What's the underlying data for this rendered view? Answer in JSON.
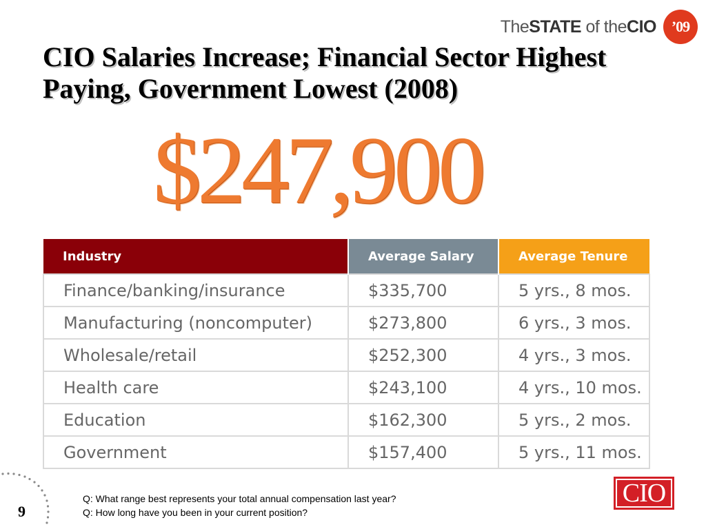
{
  "brand": {
    "prefix": "The",
    "bold": "STATE",
    "middle": "of the",
    "bold2": "CIO",
    "year": "’09"
  },
  "title": "CIO Salaries Increase; Financial Sector Highest Paying, Government Lowest (2008)",
  "headline_value": "$247,900",
  "table": {
    "headers": [
      "Industry",
      "Average Salary",
      "Average Tenure"
    ],
    "rows": [
      [
        "Finance/banking/insurance",
        "$335,700",
        "5 yrs., 8 mos."
      ],
      [
        "Manufacturing (noncomputer)",
        "$273,800",
        "6 yrs., 3 mos."
      ],
      [
        "Wholesale/retail",
        "$252,300",
        "4 yrs., 3 mos."
      ],
      [
        "Health care",
        "$243,100",
        "4 yrs., 10 mos."
      ],
      [
        "Education",
        "$162,300",
        "5 yrs., 2 mos."
      ],
      [
        "Government",
        "$157,400",
        "5 yrs., 11 mos."
      ]
    ]
  },
  "notes": {
    "q1": "Q: What range best represents your total annual compensation last year?",
    "q2": "Q: How long have you been in your current position?"
  },
  "page_number": "9",
  "logo_text": "CIO",
  "colors": {
    "industry_header": "#8a0008",
    "salary_header": "#7a8a95",
    "tenure_header": "#f5a018",
    "headline": "#ee7a30"
  }
}
